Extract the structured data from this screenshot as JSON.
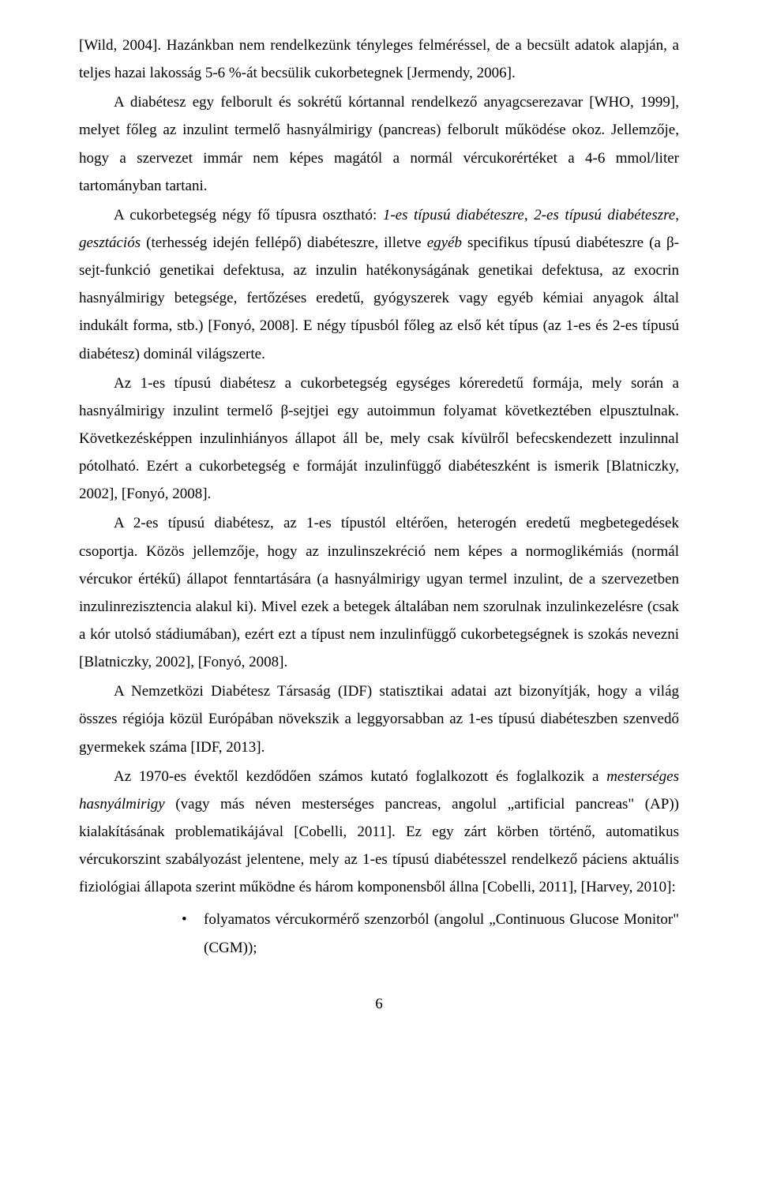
{
  "paragraphs": {
    "p1": "[Wild, 2004]. Hazánkban nem rendelkezünk tényleges felméréssel, de a becsült adatok alapján, a teljes hazai lakosság 5-6 %-át becsülik cukorbetegnek [Jermendy, 2006].",
    "p2": "A diabétesz egy felborult és sokrétű kórtannal rendelkező anyagcserezavar [WHO, 1999], melyet főleg az inzulint termelő hasnyálmirigy (pancreas) felborult működése okoz. Jellemzője, hogy a szervezet immár nem képes magától a normál vércukorértéket a 4-6 mmol/liter tartományban tartani.",
    "p3_html": "A cukorbetegség négy fő típusra osztható: <span class=\"italic\">1-es típusú diabéteszre</span>, <span class=\"italic\">2-es típusú diabéteszre</span>, <span class=\"italic\">gesztációs</span> (terhesség idején fellépő) diabéteszre, illetve <span class=\"italic\">egyéb</span> specifikus típusú diabéteszre (a β-sejt-funkció genetikai defektusa, az inzulin hatékonyságának genetikai defektusa, az exocrin hasnyálmirigy betegsége, fertőzéses eredetű, gyógyszerek vagy egyéb kémiai anyagok által indukált forma, stb.) [Fonyó, 2008]. E négy típusból főleg az első két típus (az 1-es és 2-es típusú diabétesz) dominál világszerte.",
    "p4": "Az 1-es típusú diabétesz a cukorbetegség egységes kóreredetű formája, mely során a hasnyálmirigy inzulint termelő β-sejtjei egy autoimmun folyamat következtében elpusztulnak. Következésképpen inzulinhiányos állapot áll be, mely csak kívülről befecskendezett inzulinnal pótolható. Ezért a cukorbetegség e formáját inzulinfüggő diabéteszként is ismerik [Blatniczky, 2002], [Fonyó, 2008].",
    "p5": "A 2-es típusú diabétesz, az 1-es típustól eltérően, heterogén eredetű megbetegedések csoportja. Közös jellemzője, hogy az inzulinszekréció nem képes a normoglikémiás (normál vércukor értékű) állapot fenntartására (a hasnyálmirigy ugyan termel inzulint, de a szervezetben inzulinrezisztencia alakul ki). Mivel ezek a betegek általában nem szorulnak inzulinkezelésre (csak a kór utolsó stádiumában), ezért ezt a típust nem inzulinfüggő cukorbetegségnek is szokás nevezni [Blatniczky, 2002], [Fonyó, 2008].",
    "p6": "A Nemzetközi Diabétesz Társaság (IDF) statisztikai adatai azt bizonyítják, hogy a világ összes régiója közül Európában növekszik a leggyorsabban az 1-es típusú diabéteszben szenvedő gyermekek száma [IDF, 2013].",
    "p7_html": "Az 1970-es évektől kezdődően számos kutató foglalkozott és foglalkozik a <span class=\"italic\">mesterséges hasnyálmirigy</span> (vagy más néven mesterséges pancreas, angolul „artificial pancreas\" (AP)) kialakításának problematikájával [Cobelli, 2011]. Ez egy zárt körben történő, automatikus vércukorszint szabályozást jelentene, mely az 1-es típusú diabétesszel rendelkező páciens aktuális fiziológiai állapota szerint működne és három komponensből állna [Cobelli, 2011], [Harvey, 2010]:"
  },
  "bullet1": "folyamatos vércukormérő szenzorból (angolul „Continuous Glucose Monitor\" (CGM));",
  "page_number": "6"
}
